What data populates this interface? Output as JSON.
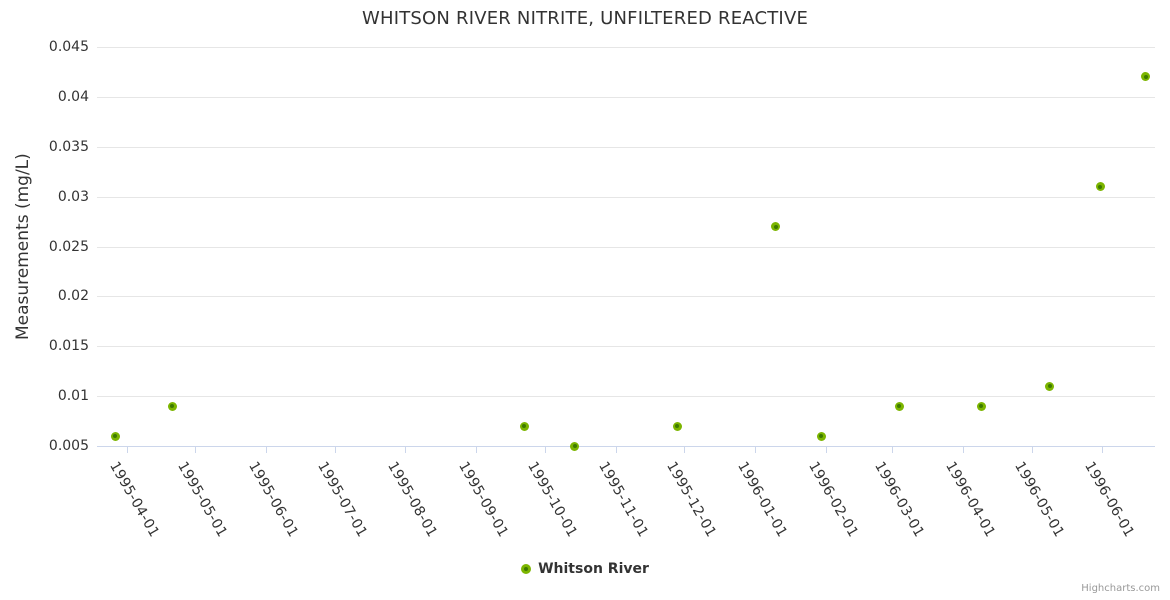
{
  "credits": {
    "label": "Highcharts.com"
  },
  "legend": {
    "label": "Whitson River"
  },
  "colors": {
    "marker_fill": "#7cb500",
    "marker_center": "#3d7a00",
    "text": "#333333",
    "grid": "#e6e6e6",
    "axis_line": "#ccd6eb",
    "credits": "#999999",
    "bg": "#ffffff"
  },
  "chart_data": {
    "type": "scatter",
    "title": "WHITSON RIVER NITRITE, UNFILTERED REACTIVE",
    "xlabel": "",
    "ylabel": "Measurements (mg/L)",
    "x_axis_type": "datetime",
    "x_range": [
      "1995-03-19",
      "1996-06-24"
    ],
    "ylim": [
      0.005,
      0.045
    ],
    "y_ticks": [
      0.005,
      0.01,
      0.015,
      0.02,
      0.025,
      0.03,
      0.035,
      0.04,
      0.045
    ],
    "x_ticks": [
      "1995-04-01",
      "1995-05-01",
      "1995-06-01",
      "1995-07-01",
      "1995-08-01",
      "1995-09-01",
      "1995-10-01",
      "1995-11-01",
      "1995-12-01",
      "1996-01-01",
      "1996-02-01",
      "1996-03-01",
      "1996-04-01",
      "1996-05-01",
      "1996-06-01"
    ],
    "grid": "horizontal",
    "legend_position": "bottom-center",
    "series": [
      {
        "name": "Whitson River",
        "points": [
          {
            "date": "1995-03-27",
            "value": 0.006
          },
          {
            "date": "1995-04-21",
            "value": 0.009
          },
          {
            "date": "1995-09-22",
            "value": 0.007
          },
          {
            "date": "1995-10-14",
            "value": 0.005
          },
          {
            "date": "1995-11-28",
            "value": 0.007
          },
          {
            "date": "1996-01-10",
            "value": 0.027
          },
          {
            "date": "1996-01-30",
            "value": 0.006
          },
          {
            "date": "1996-03-04",
            "value": 0.009
          },
          {
            "date": "1996-04-09",
            "value": 0.009
          },
          {
            "date": "1996-05-09",
            "value": 0.011
          },
          {
            "date": "1996-05-31",
            "value": 0.031
          },
          {
            "date": "1996-06-20",
            "value": 0.042
          }
        ]
      }
    ]
  }
}
